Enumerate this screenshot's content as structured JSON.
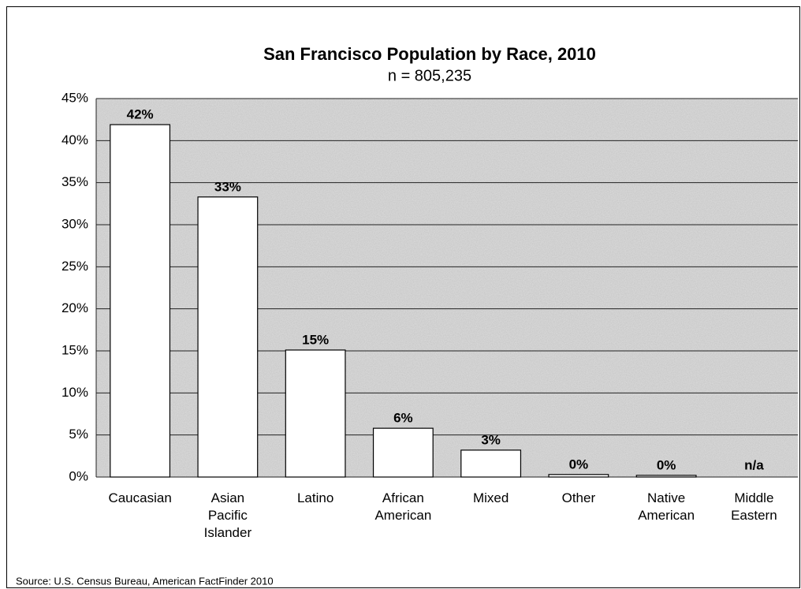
{
  "chart_data": {
    "type": "bar",
    "title": "San Francisco Population by Race, 2010",
    "subtitle": "n = 805,235",
    "categories": [
      "Caucasian",
      "Asian Pacific Islander",
      "Latino",
      "African American",
      "Mixed",
      "Other",
      "Native American",
      "Middle Eastern"
    ],
    "values": [
      41.9,
      33.3,
      15.1,
      5.8,
      3.2,
      0.3,
      0.2,
      null
    ],
    "value_labels": [
      "42%",
      "33%",
      "15%",
      "6%",
      "3%",
      "0%",
      "0%",
      "n/a"
    ],
    "color": "#ffffff",
    "ylim": [
      0,
      45
    ],
    "yticks": [
      {
        "value": 0,
        "label": "0%"
      },
      {
        "value": 5,
        "label": "5%"
      },
      {
        "value": 10,
        "label": "10%"
      },
      {
        "value": 15,
        "label": "15%"
      },
      {
        "value": 20,
        "label": "20%"
      },
      {
        "value": 25,
        "label": "25%"
      },
      {
        "value": 30,
        "label": "30%"
      },
      {
        "value": 35,
        "label": "35%"
      },
      {
        "value": 40,
        "label": "40%"
      },
      {
        "value": 45,
        "label": "45%"
      }
    ],
    "grid": true,
    "source": "Source: U.S. Census Bureau, American FactFinder 2010"
  }
}
